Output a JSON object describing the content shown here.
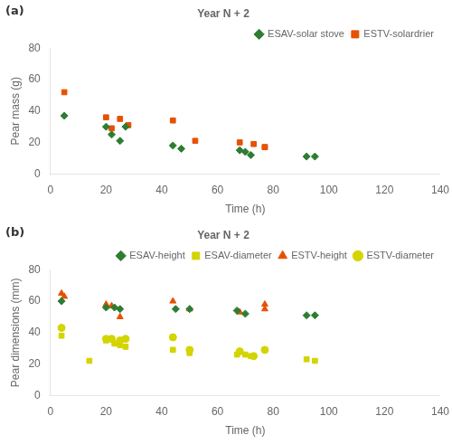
{
  "chart_data": [
    {
      "type": "scatter",
      "title": "Year N + 2",
      "annotation": "(a)",
      "xlabel": "Time (h)",
      "ylabel": "Pear mass (g)",
      "xlim": [
        0,
        140
      ],
      "xticks": [
        0,
        20,
        40,
        60,
        80,
        100,
        120,
        140
      ],
      "ylim": [
        0,
        80
      ],
      "yticks": [
        0,
        20,
        40,
        60,
        80
      ],
      "grid": false,
      "legend": "upper right",
      "series": [
        {
          "name": "ESAV-solar stove",
          "color": "#2e7d32",
          "marker": "diamond",
          "x": [
            5,
            20,
            22,
            25,
            27,
            44,
            47,
            68,
            70,
            72,
            92,
            95
          ],
          "values": [
            37,
            30,
            25,
            21,
            30,
            18,
            16,
            15,
            14,
            12,
            11,
            11
          ]
        },
        {
          "name": "ESTV-solardrier",
          "color": "#e65100",
          "marker": "square",
          "x": [
            5,
            20,
            22,
            25,
            28,
            44,
            52,
            68,
            73,
            77,
            77
          ],
          "values": [
            52,
            36,
            29,
            35,
            31,
            34,
            21,
            20,
            19,
            17,
            17
          ]
        }
      ]
    },
    {
      "type": "scatter",
      "title": "Year N + 2",
      "annotation": "(b)",
      "xlabel": "Time (h)",
      "ylabel": "Pear dimensions (mm)",
      "xlim": [
        0,
        140
      ],
      "xticks": [
        0,
        20,
        40,
        60,
        80,
        100,
        120,
        140
      ],
      "ylim": [
        0,
        80
      ],
      "yticks": [
        0,
        20,
        40,
        60,
        80
      ],
      "grid": false,
      "legend": "upper right",
      "series": [
        {
          "name": "ESAV-height",
          "color": "#2e7d32",
          "marker": "diamond",
          "x": [
            4,
            20,
            23,
            25,
            45,
            50,
            67,
            70,
            92,
            95
          ],
          "values": [
            60,
            56,
            56,
            55,
            55,
            55,
            54,
            52,
            51,
            51
          ]
        },
        {
          "name": "ESAV-diameter",
          "color": "#d4d400",
          "marker": "square",
          "x": [
            4,
            14,
            20,
            23,
            25,
            27,
            44,
            50,
            67,
            70,
            72,
            92,
            95
          ],
          "values": [
            38,
            22,
            35,
            33,
            32,
            31,
            29,
            27,
            26,
            26,
            25,
            23,
            22
          ]
        },
        {
          "name": "ESTV-height",
          "color": "#e65100",
          "marker": "triangle",
          "x": [
            4,
            5,
            20,
            22,
            25,
            44,
            50,
            68,
            77,
            77
          ],
          "values": [
            65,
            63,
            58,
            57,
            50,
            60,
            55,
            53,
            58,
            55
          ]
        },
        {
          "name": "ESTV-diameter",
          "color": "#d4d400",
          "marker": "circle",
          "x": [
            4,
            20,
            22,
            25,
            27,
            44,
            50,
            68,
            73,
            77
          ],
          "values": [
            43,
            36,
            36,
            35,
            36,
            37,
            29,
            28,
            25,
            29
          ]
        }
      ]
    }
  ]
}
